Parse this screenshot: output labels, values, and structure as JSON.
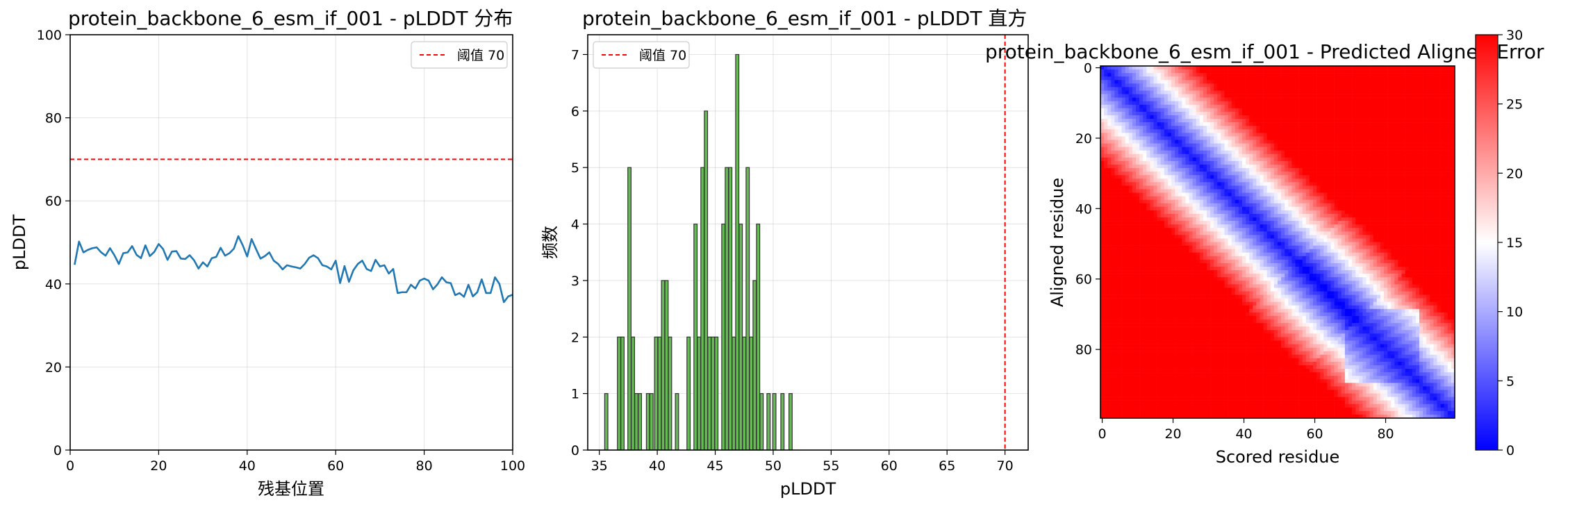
{
  "chart_data": [
    {
      "type": "line",
      "title": "protein_backbone_6_esm_if_001 - pLDDT 分布",
      "xlabel": "残基位置",
      "ylabel": "pLDDT",
      "xlim": [
        0,
        100
      ],
      "ylim": [
        0,
        100
      ],
      "xticks": [
        0,
        20,
        40,
        60,
        80,
        100
      ],
      "yticks": [
        0,
        20,
        40,
        60,
        80,
        100
      ],
      "grid": true,
      "legend": {
        "position": "top-right",
        "entries": [
          "阈值 70"
        ]
      },
      "threshold": {
        "value": 70,
        "label": "阈值 70",
        "color": "#ff0000",
        "style": "dashed"
      },
      "series": [
        {
          "color": "#1f77b4",
          "x": [
            1,
            2,
            3,
            4,
            5,
            6,
            7,
            8,
            9,
            10,
            11,
            12,
            13,
            14,
            15,
            16,
            17,
            18,
            19,
            20,
            21,
            22,
            23,
            24,
            25,
            26,
            27,
            28,
            29,
            30,
            31,
            32,
            33,
            34,
            35,
            36,
            37,
            38,
            39,
            40,
            41,
            42,
            43,
            44,
            45,
            46,
            47,
            48,
            49,
            50,
            51,
            52,
            53,
            54,
            55,
            56,
            57,
            58,
            59,
            60,
            61,
            62,
            63,
            64,
            65,
            66,
            67,
            68,
            69,
            70,
            71,
            72,
            73,
            74,
            75,
            76,
            77,
            78,
            79,
            80,
            81,
            82,
            83,
            84,
            85,
            86,
            87,
            88,
            89,
            90,
            91,
            92,
            93,
            94,
            95,
            96,
            97,
            98,
            99,
            100
          ],
          "values": [
            44.6,
            50.2,
            47.6,
            48.2,
            48.6,
            48.8,
            47.6,
            46.8,
            48.6,
            46.9,
            44.8,
            47.4,
            47.6,
            49.1,
            47.0,
            46.2,
            49.3,
            46.7,
            47.7,
            49.6,
            48.4,
            45.8,
            47.8,
            47.9,
            46.1,
            46.0,
            46.9,
            45.7,
            43.7,
            45.2,
            44.2,
            46.2,
            46.5,
            48.7,
            46.8,
            47.4,
            48.5,
            51.5,
            49.3,
            46.6,
            50.8,
            48.4,
            46.1,
            46.7,
            47.6,
            45.6,
            44.8,
            43.5,
            44.5,
            44.2,
            44.0,
            43.7,
            44.8,
            46.3,
            46.9,
            46.2,
            44.5,
            44.2,
            43.5,
            45.6,
            40.2,
            44.3,
            40.5,
            43.3,
            44.8,
            45.6,
            43.6,
            43.1,
            45.8,
            44.2,
            44.5,
            42.5,
            43.6,
            37.8,
            38.0,
            38.0,
            39.8,
            38.9,
            40.8,
            41.3,
            40.8,
            38.7,
            39.9,
            41.6,
            40.4,
            40.2,
            37.3,
            37.8,
            36.9,
            39.8,
            37.0,
            38.0,
            41.1,
            37.8,
            37.8,
            41.6,
            40.0,
            35.6,
            37.0,
            37.4
          ]
        }
      ]
    },
    {
      "type": "bar",
      "title": "protein_backbone_6_esm_if_001 - pLDDT 直方",
      "xlabel": "pLDDT",
      "ylabel": "频数",
      "xlim": [
        34,
        72
      ],
      "ylim": [
        0,
        7.35
      ],
      "xticks": [
        35,
        40,
        45,
        50,
        55,
        60,
        65,
        70
      ],
      "yticks": [
        0,
        1,
        2,
        3,
        4,
        5,
        6,
        7
      ],
      "grid": true,
      "legend": {
        "position": "top-left",
        "entries": [
          "阈值 70"
        ]
      },
      "threshold": {
        "value": 70,
        "label": "阈值 70",
        "color": "#ff0000",
        "style": "dashed"
      },
      "bar_color": "#66bb55",
      "bar_edge": "#333333",
      "bins": [
        {
          "x": 35.6,
          "count": 1
        },
        {
          "x": 36.7,
          "count": 2
        },
        {
          "x": 37.0,
          "count": 2
        },
        {
          "x": 37.6,
          "count": 5
        },
        {
          "x": 37.9,
          "count": 2
        },
        {
          "x": 38.2,
          "count": 1
        },
        {
          "x": 38.5,
          "count": 1
        },
        {
          "x": 39.2,
          "count": 1
        },
        {
          "x": 39.5,
          "count": 1
        },
        {
          "x": 39.9,
          "count": 2
        },
        {
          "x": 40.2,
          "count": 2
        },
        {
          "x": 40.5,
          "count": 3
        },
        {
          "x": 40.8,
          "count": 3
        },
        {
          "x": 41.1,
          "count": 2
        },
        {
          "x": 41.7,
          "count": 1
        },
        {
          "x": 42.7,
          "count": 2
        },
        {
          "x": 43.3,
          "count": 4
        },
        {
          "x": 43.6,
          "count": 2
        },
        {
          "x": 43.9,
          "count": 5
        },
        {
          "x": 44.2,
          "count": 6
        },
        {
          "x": 44.5,
          "count": 2
        },
        {
          "x": 44.8,
          "count": 2
        },
        {
          "x": 45.1,
          "count": 2
        },
        {
          "x": 45.7,
          "count": 4
        },
        {
          "x": 46.0,
          "count": 5
        },
        {
          "x": 46.3,
          "count": 5
        },
        {
          "x": 46.6,
          "count": 2
        },
        {
          "x": 46.9,
          "count": 7
        },
        {
          "x": 47.2,
          "count": 4
        },
        {
          "x": 47.5,
          "count": 2
        },
        {
          "x": 47.8,
          "count": 5
        },
        {
          "x": 48.1,
          "count": 2
        },
        {
          "x": 48.4,
          "count": 3
        },
        {
          "x": 48.7,
          "count": 4
        },
        {
          "x": 49.0,
          "count": 1
        },
        {
          "x": 49.6,
          "count": 1
        },
        {
          "x": 50.1,
          "count": 1
        },
        {
          "x": 50.8,
          "count": 1
        },
        {
          "x": 51.5,
          "count": 1
        }
      ]
    },
    {
      "type": "heatmap",
      "title": "protein_backbone_6_esm_if_001 - Predicted Aligned Error",
      "xlabel": "Scored residue",
      "ylabel": "Aligned residue",
      "size": 100,
      "xticks": [
        0,
        20,
        40,
        60,
        80
      ],
      "yticks": [
        0,
        20,
        40,
        60,
        80
      ],
      "colormap": "bwr",
      "colorbar": {
        "min": 0,
        "max": 30,
        "ticks": [
          0,
          5,
          10,
          15,
          20,
          25,
          30
        ]
      }
    }
  ]
}
